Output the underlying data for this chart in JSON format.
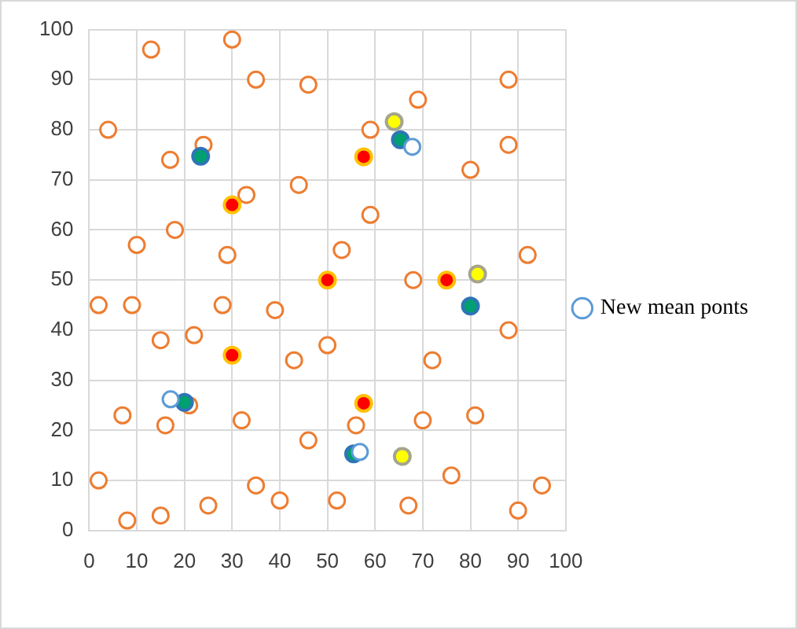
{
  "chart_data": {
    "type": "scatter",
    "xlim": [
      0,
      100
    ],
    "ylim": [
      0,
      100
    ],
    "xticks": [
      0,
      10,
      20,
      30,
      40,
      50,
      60,
      70,
      80,
      90,
      100
    ],
    "yticks": [
      0,
      10,
      20,
      30,
      40,
      50,
      60,
      70,
      80,
      90,
      100
    ],
    "grid": true,
    "legend": "right",
    "marker": "circle",
    "series": [
      {
        "color": "#ed7d31",
        "x": [
          13,
          30,
          35,
          46,
          88,
          69,
          4,
          59,
          24,
          17,
          88,
          80,
          44,
          33,
          59,
          18,
          10,
          53,
          29,
          68,
          92,
          2,
          9,
          28,
          39,
          15,
          22,
          50,
          43,
          72,
          88,
          7,
          16,
          21,
          32,
          46,
          56,
          70,
          81,
          2,
          35,
          40,
          25,
          15,
          8,
          52,
          67,
          76,
          95,
          90
        ],
        "values": [
          96,
          98,
          90,
          89,
          90,
          86,
          80,
          80,
          77,
          74,
          77,
          72,
          69,
          67,
          63,
          60,
          57,
          56,
          55,
          50,
          55,
          45,
          45,
          45,
          44,
          38,
          39,
          37,
          34,
          34,
          40,
          23,
          21,
          25,
          22,
          18,
          21,
          22,
          23,
          10,
          9,
          6,
          5,
          3,
          2,
          6,
          5,
          11,
          9,
          4
        ]
      },
      {
        "color": "#ff0000",
        "x": [
          30,
          50,
          57.6,
          75,
          30,
          57.6
        ],
        "values": [
          65,
          50,
          74.6,
          50,
          35,
          25.4
        ]
      },
      {
        "color": "#ffff00",
        "x": [
          64,
          81.5,
          65.7
        ],
        "values": [
          81.6,
          51.2,
          14.8
        ]
      },
      {
        "color": "#00a070",
        "x": [
          23.4,
          65.3,
          80,
          20,
          55.5
        ],
        "values": [
          74.7,
          78,
          44.8,
          25.6,
          15.3
        ]
      },
      {
        "name": "New mean ponts",
        "color": "#5b9bd5",
        "x": [
          67.8,
          17.1,
          56.8
        ],
        "values": [
          76.6,
          26.2,
          15.7
        ]
      }
    ]
  }
}
